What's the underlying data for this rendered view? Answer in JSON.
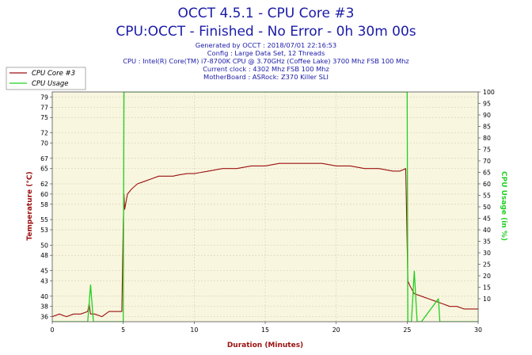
{
  "chart_data": {
    "type": "line",
    "title": "OCCT 4.5.1 - CPU Core #3",
    "subtitle": "CPU:OCCT - Finished - No Error - 0h 30m 00s",
    "info_lines": [
      "Generated by OCCT : 2018/07/01 22:16:53",
      "Config : Large Data Set, 12 Threads",
      "CPU : Intel(R) Core(TM) i7-8700K CPU @ 3.70GHz (Coffee Lake) 3700 Mhz FSB 100 Mhz",
      "Current clock : 4302 Mhz FSB 100 Mhz",
      "MotherBoard : ASRock: Z370 Killer SLI"
    ],
    "xlabel": "Duration (Minutes)",
    "ylabel_left": "Temperature (°C)",
    "ylabel_right": "CPU Usage (in %)",
    "xlim": [
      0,
      30
    ],
    "ylim_left": [
      35,
      80
    ],
    "ylim_right": [
      0,
      100
    ],
    "x_ticks": [
      "0",
      "5",
      "10",
      "15",
      "20",
      "25",
      "30"
    ],
    "y_ticks_left": [
      "36",
      "38",
      "40",
      "43",
      "45",
      "48",
      "50",
      "53",
      "55",
      "58",
      "60",
      "62",
      "65",
      "67",
      "70",
      "72",
      "75",
      "77",
      "79"
    ],
    "y_ticks_right": [
      "10",
      "15",
      "20",
      "25",
      "30",
      "35",
      "40",
      "45",
      "50",
      "55",
      "60",
      "65",
      "70",
      "75",
      "80",
      "85",
      "90",
      "95",
      "100"
    ],
    "grid": true,
    "legend_position": "top-left",
    "series": [
      {
        "name": "CPU Core #3",
        "axis": "left",
        "color": "#9b1010",
        "x": [
          0,
          0.5,
          1,
          1.5,
          2,
          2.5,
          2.6,
          2.7,
          3,
          3.5,
          4,
          4.5,
          4.9,
          5.0,
          5.05,
          5.1,
          5.3,
          5.6,
          6,
          6.5,
          7,
          7.5,
          8,
          8.5,
          9,
          9.5,
          10,
          11,
          12,
          13,
          14,
          15,
          16,
          17,
          18,
          19,
          20,
          21,
          22,
          23,
          24,
          24.5,
          24.9,
          25.05,
          25.2,
          25.5,
          26,
          26.5,
          27,
          27.5,
          28,
          28.5,
          29,
          29.5,
          30
        ],
        "y": [
          36,
          36.5,
          36,
          36.5,
          36.5,
          37,
          38.5,
          36.5,
          36.5,
          36,
          37,
          37,
          37,
          54,
          60,
          57,
          60,
          61,
          62,
          62.5,
          63,
          63.5,
          63.5,
          63.5,
          63.8,
          64,
          64,
          64.5,
          65,
          65,
          65.5,
          65.5,
          66,
          66,
          66,
          66,
          65.5,
          65.5,
          65,
          65,
          64.5,
          64.5,
          65,
          43,
          42,
          40.5,
          40,
          39.5,
          39,
          38.5,
          38,
          38,
          37.5,
          37.5,
          37.5
        ]
      },
      {
        "name": "CPU Usage",
        "axis": "right",
        "color": "#22d022",
        "x": [
          0,
          2.5,
          2.7,
          2.9,
          3.2,
          4.9,
          5.0,
          5.05,
          25.0,
          25.05,
          25.3,
          25.5,
          25.7,
          26,
          27.2,
          27.3,
          27.5,
          30
        ],
        "y": [
          0,
          0,
          16,
          0,
          0,
          0,
          0,
          100,
          100,
          0,
          0,
          22,
          0,
          0,
          10,
          0,
          0,
          0
        ]
      }
    ],
    "colors": {
      "plot_background": "#f8f6df",
      "grid": "#d8d4b8",
      "temperature_axis": "#9b1010",
      "usage_axis": "#22d022",
      "title": "#1a1aa8",
      "xlabel": "#9b1010"
    }
  }
}
